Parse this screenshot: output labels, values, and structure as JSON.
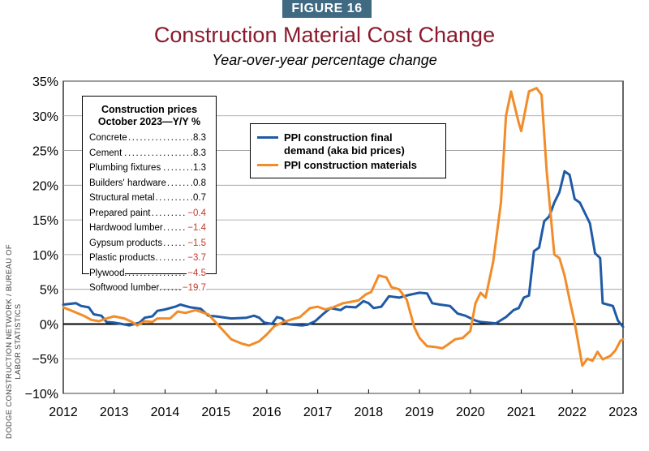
{
  "figure_tag": "FIGURE 16",
  "source": "DODGE CONSTRUCTION NETWORK / BUREAU OF LABOR STATISTICS",
  "colors": {
    "bid": "#1f5aa6",
    "materials": "#f28c28",
    "title": "#8b1a2e",
    "tag": "#3f6a82",
    "negative": "#c0392b"
  },
  "chart_data": {
    "type": "line",
    "title": "Construction Material Cost Change",
    "subtitle": "Year-over-year percentage change",
    "xlim": [
      2012,
      2023
    ],
    "ylim": [
      -10,
      35
    ],
    "x_ticks": [
      "2012",
      "2013",
      "2014",
      "2015",
      "2016",
      "2017",
      "2018",
      "2019",
      "2020",
      "2021",
      "2022",
      "2023"
    ],
    "y_ticks": [
      "35%",
      "30%",
      "25%",
      "20%",
      "15%",
      "10%",
      "5%",
      "0%",
      "−5%",
      "−10%"
    ],
    "y_tick_values": [
      35,
      30,
      25,
      20,
      15,
      10,
      5,
      0,
      -5,
      -10
    ],
    "grid": true,
    "legend_position": "top-center",
    "series": [
      {
        "name": "PPI construction final demand (aka bid prices)",
        "color": "#1f5aa6",
        "points": [
          [
            2012.0,
            2.8
          ],
          [
            2012.25,
            3.0
          ],
          [
            2012.35,
            2.6
          ],
          [
            2012.5,
            2.4
          ],
          [
            2012.6,
            1.4
          ],
          [
            2012.75,
            1.2
          ],
          [
            2012.85,
            0.3
          ],
          [
            2013.0,
            0.2
          ],
          [
            2013.15,
            0.0
          ],
          [
            2013.3,
            -0.2
          ],
          [
            2013.5,
            0.2
          ],
          [
            2013.6,
            0.9
          ],
          [
            2013.75,
            1.1
          ],
          [
            2013.85,
            1.9
          ],
          [
            2014.0,
            2.1
          ],
          [
            2014.2,
            2.5
          ],
          [
            2014.3,
            2.8
          ],
          [
            2014.5,
            2.4
          ],
          [
            2014.7,
            2.2
          ],
          [
            2014.85,
            1.2
          ],
          [
            2015.0,
            1.1
          ],
          [
            2015.3,
            0.8
          ],
          [
            2015.6,
            0.9
          ],
          [
            2015.75,
            1.2
          ],
          [
            2015.85,
            0.9
          ],
          [
            2015.95,
            0.2
          ],
          [
            2016.1,
            0.0
          ],
          [
            2016.2,
            1.0
          ],
          [
            2016.3,
            0.8
          ],
          [
            2016.4,
            0.0
          ],
          [
            2016.5,
            -0.1
          ],
          [
            2016.7,
            -0.2
          ],
          [
            2016.8,
            -0.1
          ],
          [
            2016.95,
            0.4
          ],
          [
            2017.1,
            1.4
          ],
          [
            2017.25,
            2.3
          ],
          [
            2017.45,
            2.0
          ],
          [
            2017.55,
            2.5
          ],
          [
            2017.75,
            2.4
          ],
          [
            2017.9,
            3.3
          ],
          [
            2018.0,
            3.0
          ],
          [
            2018.1,
            2.3
          ],
          [
            2018.25,
            2.5
          ],
          [
            2018.4,
            4.0
          ],
          [
            2018.6,
            3.8
          ],
          [
            2018.8,
            4.2
          ],
          [
            2019.0,
            4.5
          ],
          [
            2019.15,
            4.4
          ],
          [
            2019.25,
            3.0
          ],
          [
            2019.4,
            2.8
          ],
          [
            2019.6,
            2.6
          ],
          [
            2019.75,
            1.5
          ],
          [
            2019.9,
            1.2
          ],
          [
            2020.1,
            0.5
          ],
          [
            2020.2,
            0.3
          ],
          [
            2020.35,
            0.2
          ],
          [
            2020.5,
            0.1
          ],
          [
            2020.7,
            1.0
          ],
          [
            2020.85,
            2.0
          ],
          [
            2020.95,
            2.3
          ],
          [
            2021.05,
            3.8
          ],
          [
            2021.15,
            4.1
          ],
          [
            2021.25,
            10.5
          ],
          [
            2021.35,
            11.0
          ],
          [
            2021.45,
            14.8
          ],
          [
            2021.55,
            15.5
          ],
          [
            2021.65,
            17.5
          ],
          [
            2021.75,
            19.0
          ],
          [
            2021.85,
            22.0
          ],
          [
            2021.95,
            21.5
          ],
          [
            2022.05,
            18.0
          ],
          [
            2022.15,
            17.5
          ],
          [
            2022.25,
            16.0
          ],
          [
            2022.35,
            14.5
          ],
          [
            2022.45,
            10.2
          ],
          [
            2022.55,
            9.5
          ],
          [
            2022.6,
            3.0
          ],
          [
            2022.7,
            2.8
          ],
          [
            2022.8,
            2.6
          ],
          [
            2022.9,
            0.5
          ],
          [
            2023.0,
            -0.4
          ]
        ]
      },
      {
        "name": "PPI construction materials",
        "color": "#f28c28",
        "points": [
          [
            2012.0,
            2.4
          ],
          [
            2012.2,
            1.8
          ],
          [
            2012.4,
            1.2
          ],
          [
            2012.55,
            0.6
          ],
          [
            2012.7,
            0.4
          ],
          [
            2012.85,
            0.8
          ],
          [
            2013.0,
            1.1
          ],
          [
            2013.2,
            0.8
          ],
          [
            2013.35,
            0.3
          ],
          [
            2013.45,
            -0.2
          ],
          [
            2013.6,
            0.4
          ],
          [
            2013.75,
            0.3
          ],
          [
            2013.85,
            0.8
          ],
          [
            2014.1,
            0.8
          ],
          [
            2014.25,
            1.8
          ],
          [
            2014.4,
            1.6
          ],
          [
            2014.6,
            2.0
          ],
          [
            2014.85,
            1.4
          ],
          [
            2015.0,
            0.2
          ],
          [
            2015.15,
            -1.0
          ],
          [
            2015.3,
            -2.2
          ],
          [
            2015.5,
            -2.8
          ],
          [
            2015.65,
            -3.1
          ],
          [
            2015.85,
            -2.5
          ],
          [
            2016.0,
            -1.5
          ],
          [
            2016.15,
            -0.3
          ],
          [
            2016.3,
            0.2
          ],
          [
            2016.5,
            0.7
          ],
          [
            2016.65,
            1.0
          ],
          [
            2016.85,
            2.3
          ],
          [
            2017.0,
            2.5
          ],
          [
            2017.15,
            2.1
          ],
          [
            2017.3,
            2.4
          ],
          [
            2017.5,
            3.0
          ],
          [
            2017.65,
            3.2
          ],
          [
            2017.8,
            3.4
          ],
          [
            2017.95,
            4.3
          ],
          [
            2018.05,
            4.6
          ],
          [
            2018.2,
            7.0
          ],
          [
            2018.35,
            6.7
          ],
          [
            2018.45,
            5.3
          ],
          [
            2018.6,
            5.0
          ],
          [
            2018.75,
            3.5
          ],
          [
            2018.9,
            -0.5
          ],
          [
            2019.0,
            -2.0
          ],
          [
            2019.15,
            -3.2
          ],
          [
            2019.3,
            -3.3
          ],
          [
            2019.45,
            -3.5
          ],
          [
            2019.55,
            -3.0
          ],
          [
            2019.7,
            -2.2
          ],
          [
            2019.85,
            -2.0
          ],
          [
            2020.0,
            -1.0
          ],
          [
            2020.1,
            3.0
          ],
          [
            2020.2,
            4.5
          ],
          [
            2020.3,
            3.8
          ],
          [
            2020.45,
            9.0
          ],
          [
            2020.6,
            17.5
          ],
          [
            2020.7,
            30.0
          ],
          [
            2020.8,
            33.5
          ],
          [
            2020.95,
            29.0
          ],
          [
            2021.0,
            27.8
          ],
          [
            2021.15,
            33.5
          ],
          [
            2021.3,
            34.0
          ],
          [
            2021.4,
            33.0
          ],
          [
            2021.5,
            22.0
          ],
          [
            2021.65,
            10.0
          ],
          [
            2021.75,
            9.5
          ],
          [
            2021.85,
            7.0
          ],
          [
            2021.95,
            3.5
          ],
          [
            2022.05,
            0.2
          ],
          [
            2022.2,
            -6.0
          ],
          [
            2022.3,
            -5.0
          ],
          [
            2022.4,
            -5.3
          ],
          [
            2022.5,
            -4.0
          ],
          [
            2022.6,
            -5.1
          ],
          [
            2022.75,
            -4.6
          ],
          [
            2022.85,
            -3.8
          ],
          [
            2022.95,
            -2.4
          ],
          [
            2023.0,
            -2.2
          ]
        ]
      }
    ]
  },
  "table": {
    "title_line1": "Construction prices",
    "title_line2": "October 2023—Y/Y %",
    "dots": "....................................................",
    "rows": [
      {
        "label": "Concrete",
        "value": "8.3",
        "neg": false
      },
      {
        "label": "Cement",
        "value": "8.3",
        "neg": false
      },
      {
        "label": "Plumbing fixtures",
        "value": "1.3",
        "neg": false
      },
      {
        "label": "Builders' hardware",
        "value": "0.8",
        "neg": false
      },
      {
        "label": "Structural metal",
        "value": "0.7",
        "neg": false
      },
      {
        "label": "Prepared paint",
        "value": "−0.4",
        "neg": true
      },
      {
        "label": "Hardwood lumber",
        "value": "−1.4",
        "neg": true
      },
      {
        "label": "Gypsum products",
        "value": "−1.5",
        "neg": true
      },
      {
        "label": "Plastic products",
        "value": "−3.7",
        "neg": true
      },
      {
        "label": "Plywood",
        "value": "−4.5",
        "neg": true
      },
      {
        "label": "Softwood lumber",
        "value": "−19.7",
        "neg": true
      }
    ]
  },
  "legend": {
    "item1_line1": "PPI construction final",
    "item1_line2": "demand (aka bid prices)",
    "item2": "PPI construction materials"
  }
}
